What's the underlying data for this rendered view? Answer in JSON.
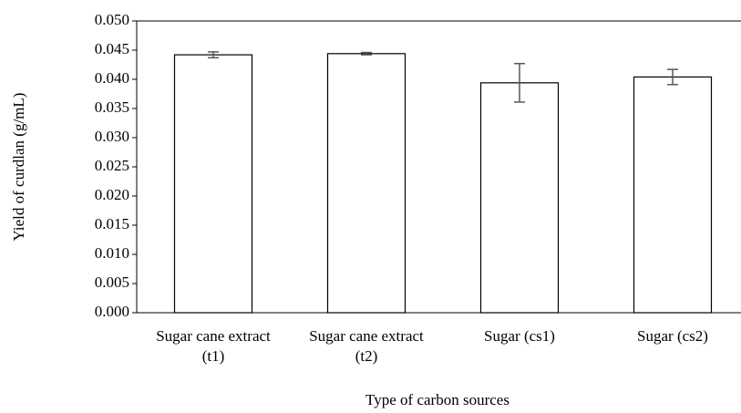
{
  "chart_data": {
    "type": "bar",
    "x_label": "Type of carbon sources",
    "y_label": "Yield of curdlan (g/mL)",
    "categories": [
      "Sugar cane extract (t1)",
      "Sugar cane extract (t2)",
      "Sugar (cs1)",
      "Sugar (cs2)"
    ],
    "values": [
      0.0442,
      0.0444,
      0.0394,
      0.0404
    ],
    "errors": [
      0.0005,
      0.0002,
      0.0033,
      0.0013
    ],
    "color": "#ffffff",
    "ylim": [
      0,
      0.05
    ],
    "yticks": [
      {
        "value": 0,
        "label": "0.000"
      },
      {
        "value": 0.005,
        "label": "0.005"
      },
      {
        "value": 0.01,
        "label": "0.010"
      },
      {
        "value": 0.015,
        "label": "0.015"
      },
      {
        "value": 0.02,
        "label": "0.020"
      },
      {
        "value": 0.025,
        "label": "0.025"
      },
      {
        "value": 0.03,
        "label": "0.030"
      },
      {
        "value": 0.035,
        "label": "0.035"
      },
      {
        "value": 0.04,
        "label": "0.040"
      },
      {
        "value": 0.045,
        "label": "0.045"
      },
      {
        "value": 0.05,
        "label": "0.050"
      }
    ],
    "grid": false
  }
}
